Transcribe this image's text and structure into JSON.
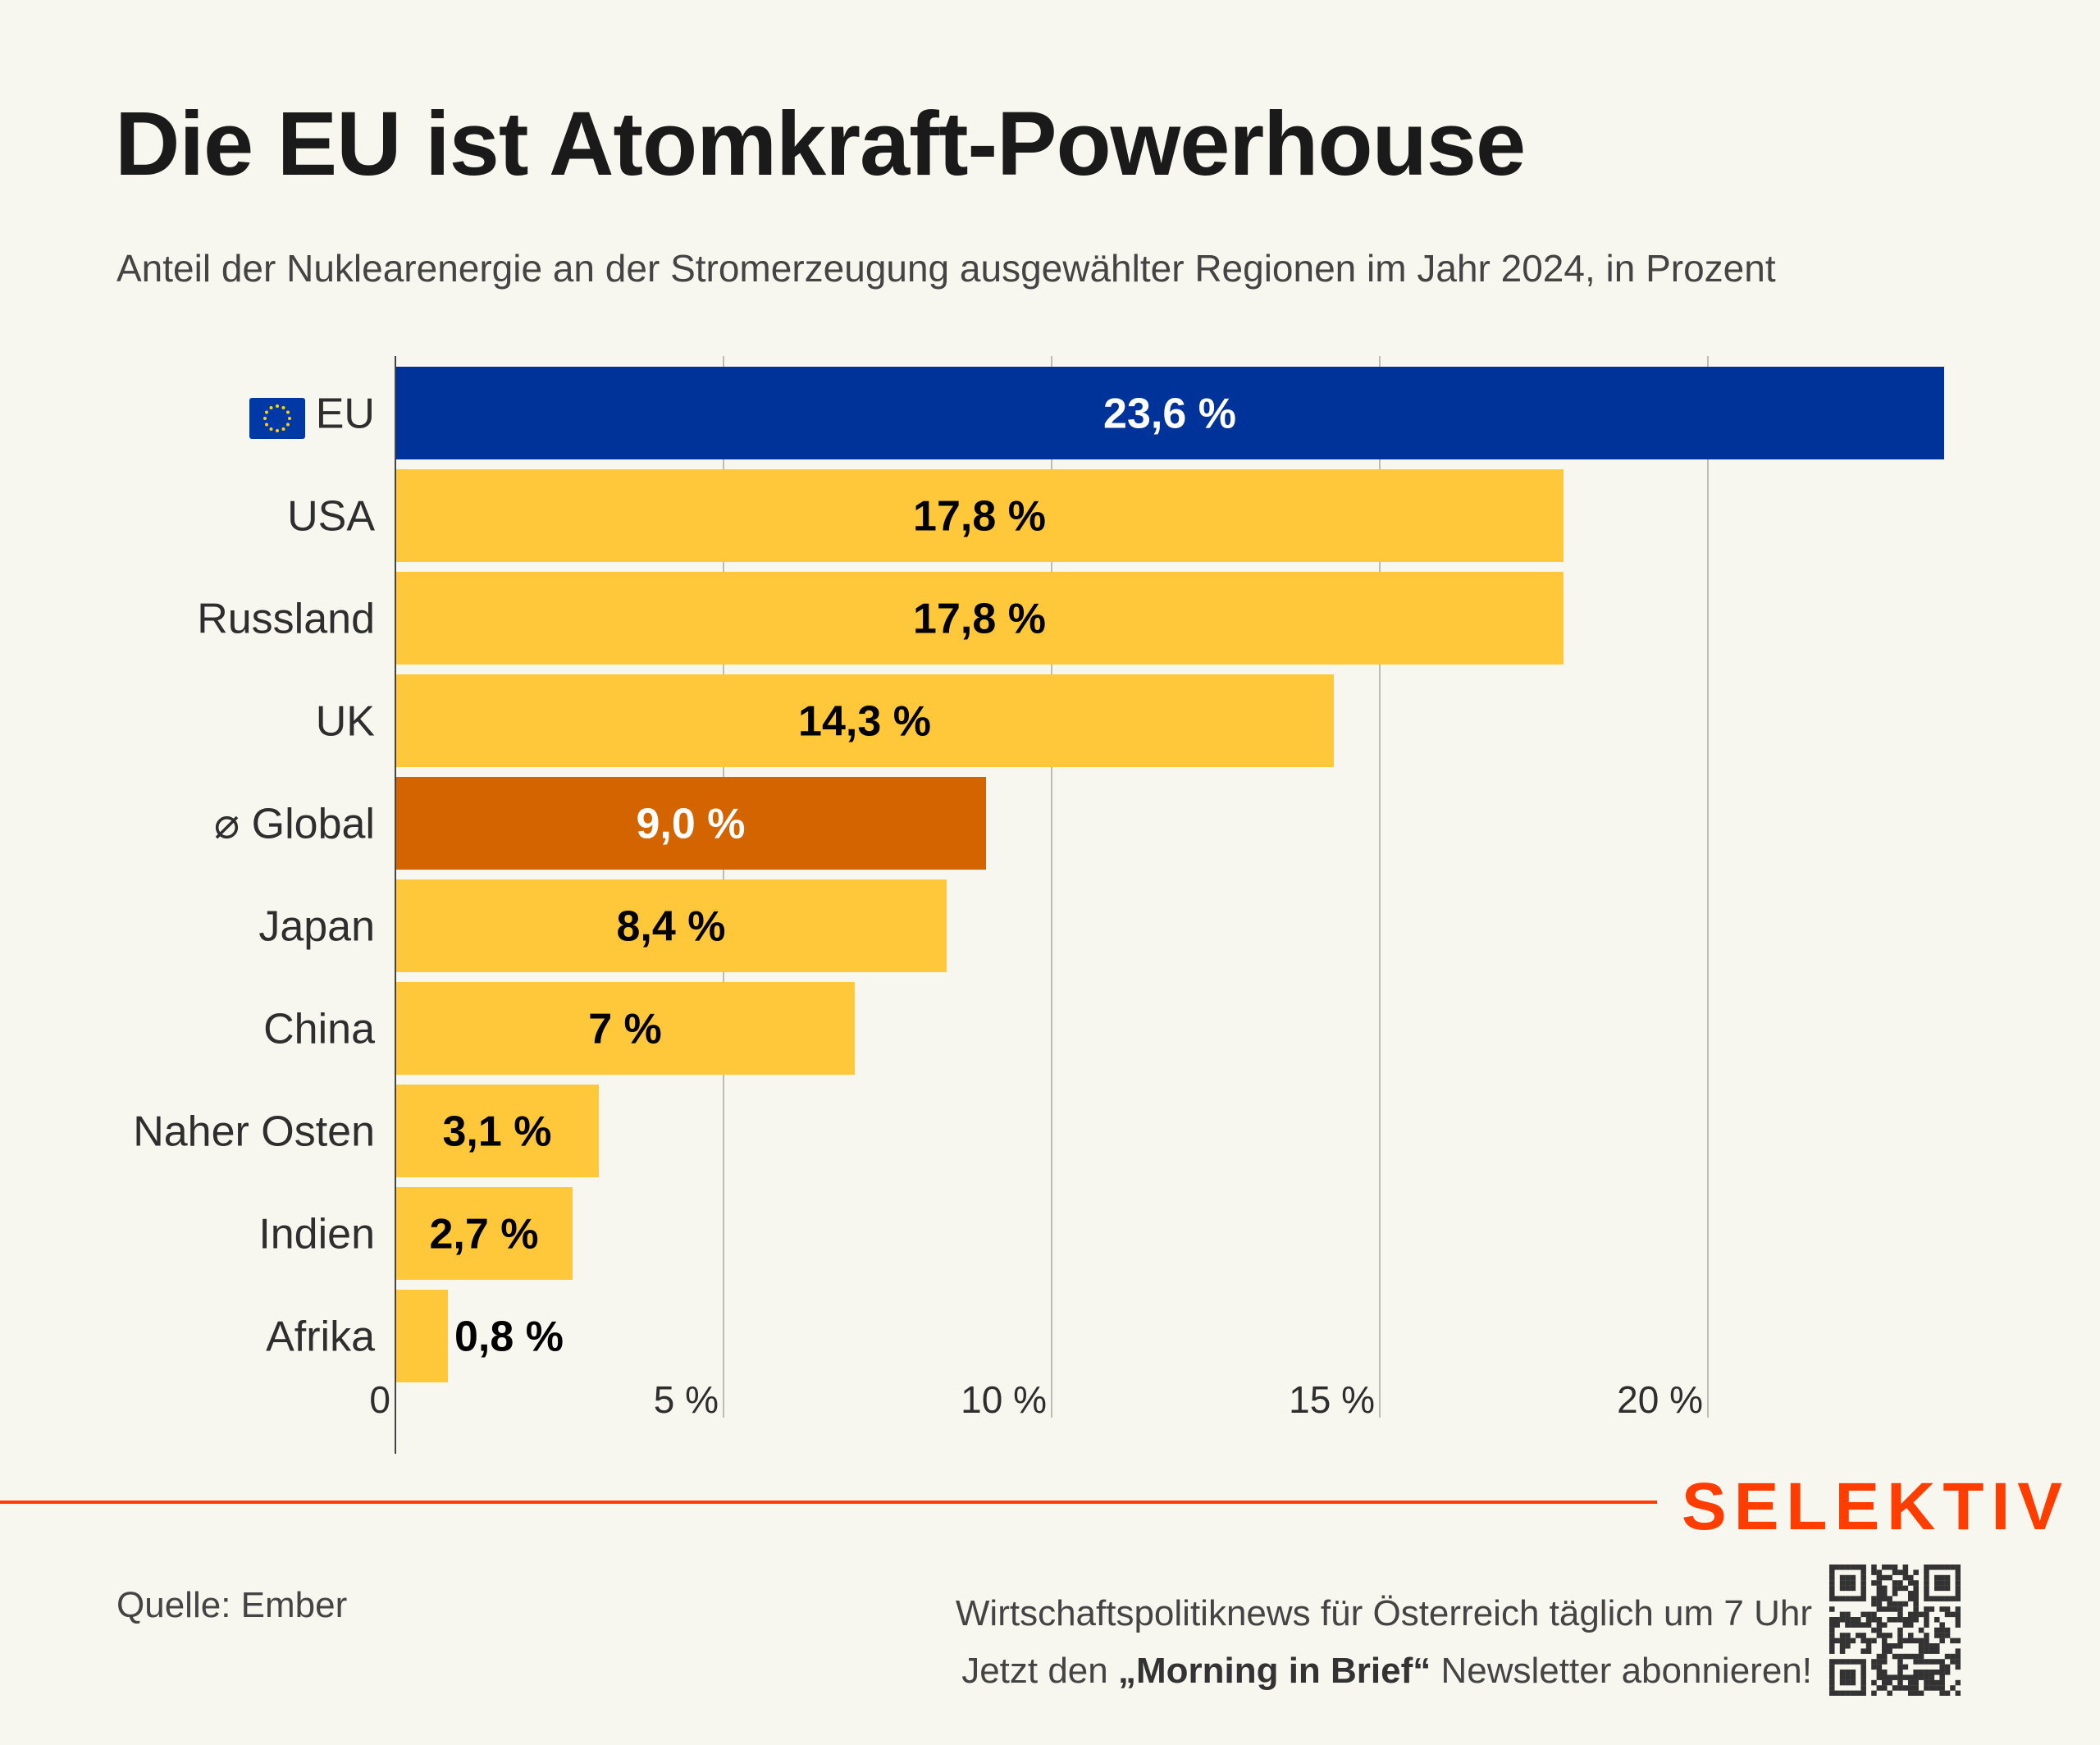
{
  "header": {
    "title": "Die EU ist Atomkraft-Powerhouse",
    "subtitle": "Anteil der Nuklearenergie an der Stromerzeugung ausgewählter Regionen im Jahr 2024, in Prozent"
  },
  "chart_data": {
    "type": "bar",
    "orientation": "horizontal",
    "title": "Die EU ist Atomkraft-Powerhouse",
    "xlabel": "",
    "ylabel": "",
    "xlim": [
      0,
      24
    ],
    "grid": true,
    "categories": [
      "EU",
      "USA",
      "Russland",
      "UK",
      "⌀ Global",
      "Japan",
      "China",
      "Naher Osten",
      "Indien",
      "Afrika"
    ],
    "values": [
      23.6,
      17.8,
      17.8,
      14.3,
      9.0,
      8.4,
      7.0,
      3.1,
      2.7,
      0.8
    ],
    "labels": [
      "23,6 %",
      "17,8 %",
      "17,8 %",
      "14,3 %",
      "9,0 %",
      "8,4 %",
      "7 %",
      "3,1 %",
      "2,7 %",
      "0,8 %"
    ],
    "colors": [
      "#00339A",
      "#FFC83A",
      "#FFC83A",
      "#FFC83A",
      "#D46400",
      "#FFC83A",
      "#FFC83A",
      "#FFC83A",
      "#FFC83A",
      "#FFC83A"
    ],
    "label_colors": [
      "#FFFFFF",
      "#000000",
      "#000000",
      "#000000",
      "#FFFFFF",
      "#000000",
      "#000000",
      "#000000",
      "#000000",
      "#000000"
    ],
    "icons": [
      "eu-flag-icon",
      null,
      null,
      null,
      null,
      null,
      null,
      null,
      null,
      null
    ],
    "xticks": [
      0,
      5,
      10,
      15,
      20
    ],
    "xtick_labels": [
      "0",
      "5 %",
      "10 %",
      "15 %",
      "20 %"
    ]
  },
  "footer": {
    "source": "Quelle: Ember",
    "brand": "SELEKTIV",
    "promo_line1": "Wirtschaftspolitiknews für Österreich täglich um 7 Uhr",
    "promo_line2_pre": "Jetzt den ",
    "promo_line2_bold": "„Morning in Brief“",
    "promo_line2_post": " Newsletter abonnieren!"
  },
  "colors": {
    "background": "#F8F7EF",
    "brand": "#FF3D00"
  }
}
